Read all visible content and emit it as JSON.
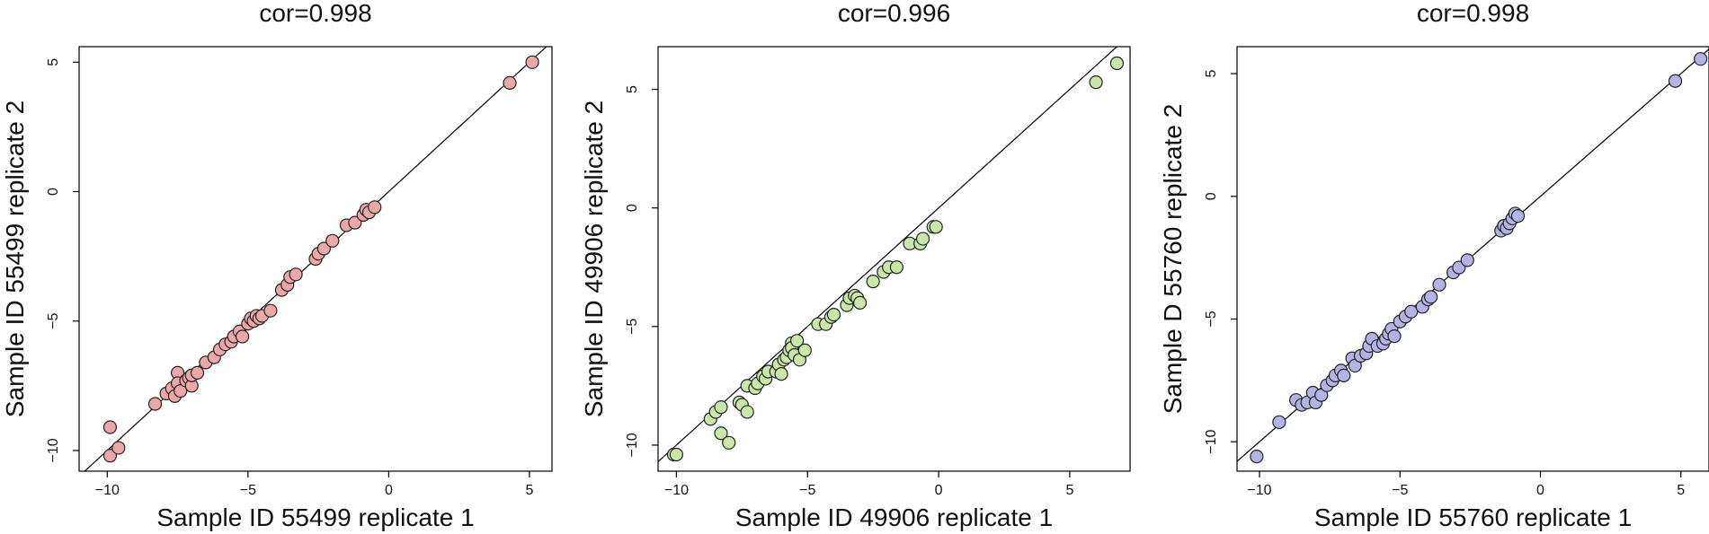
{
  "chart_data": [
    {
      "type": "scatter",
      "title": "cor=0.998",
      "xlabel": "Sample ID 55499 replicate 1",
      "ylabel": "Sample ID 55499 replicate 2",
      "xlim": [
        -11,
        5.8
      ],
      "ylim": [
        -10.8,
        5.6
      ],
      "xticks": [
        -10,
        -5,
        0,
        5
      ],
      "yticks": [
        -10,
        -5,
        0,
        5
      ],
      "xtick_labels": [
        "−10",
        "−5",
        "0",
        "5"
      ],
      "ytick_labels": [
        "−10",
        "−5",
        "0",
        "5"
      ],
      "point_color": "#ECA8A8",
      "reference_line": "y = x",
      "grid": false,
      "points": [
        [
          -9.9,
          -9.1
        ],
        [
          -9.9,
          -10.2
        ],
        [
          -9.6,
          -9.9
        ],
        [
          -8.3,
          -8.2
        ],
        [
          -7.9,
          -7.8
        ],
        [
          -7.7,
          -7.6
        ],
        [
          -7.6,
          -7.9
        ],
        [
          -7.5,
          -7.0
        ],
        [
          -7.5,
          -7.4
        ],
        [
          -7.4,
          -7.7
        ],
        [
          -7.2,
          -7.3
        ],
        [
          -7.1,
          -7.2
        ],
        [
          -7.0,
          -7.5
        ],
        [
          -7.0,
          -7.1
        ],
        [
          -6.8,
          -7.0
        ],
        [
          -6.5,
          -6.6
        ],
        [
          -6.2,
          -6.4
        ],
        [
          -6.0,
          -6.1
        ],
        [
          -5.8,
          -5.9
        ],
        [
          -5.6,
          -5.8
        ],
        [
          -5.5,
          -5.6
        ],
        [
          -5.3,
          -5.4
        ],
        [
          -5.2,
          -5.6
        ],
        [
          -5.0,
          -5.1
        ],
        [
          -4.9,
          -4.9
        ],
        [
          -4.8,
          -5.0
        ],
        [
          -4.7,
          -4.8
        ],
        [
          -4.6,
          -4.9
        ],
        [
          -4.5,
          -4.8
        ],
        [
          -4.2,
          -4.6
        ],
        [
          -3.8,
          -3.8
        ],
        [
          -3.6,
          -3.6
        ],
        [
          -3.5,
          -3.3
        ],
        [
          -3.3,
          -3.2
        ],
        [
          -2.6,
          -2.6
        ],
        [
          -2.5,
          -2.4
        ],
        [
          -2.3,
          -2.2
        ],
        [
          -2.0,
          -1.9
        ],
        [
          -1.5,
          -1.3
        ],
        [
          -1.2,
          -1.2
        ],
        [
          -0.9,
          -0.9
        ],
        [
          -0.8,
          -0.7
        ],
        [
          -0.7,
          -0.8
        ],
        [
          -0.5,
          -0.6
        ],
        [
          4.3,
          4.2
        ],
        [
          5.1,
          5.0
        ]
      ]
    },
    {
      "type": "scatter",
      "title": "cor=0.996",
      "xlabel": "Sample ID 49906 replicate 1",
      "ylabel": "Sample  ID 49906 replicate 2",
      "xlim": [
        -10.7,
        7.3
      ],
      "ylim": [
        -11.1,
        6.8
      ],
      "xticks": [
        -10,
        -5,
        0,
        5
      ],
      "yticks": [
        -10,
        -5,
        0,
        5
      ],
      "xtick_labels": [
        "−10",
        "−5",
        "0",
        "5"
      ],
      "ytick_labels": [
        "−10",
        "−5",
        "0",
        "5"
      ],
      "point_color": "#C9E8A8",
      "reference_line": "y = x",
      "grid": false,
      "points": [
        [
          -10.1,
          -10.4
        ],
        [
          -10.0,
          -10.4
        ],
        [
          -8.7,
          -8.9
        ],
        [
          -8.5,
          -8.6
        ],
        [
          -8.3,
          -8.4
        ],
        [
          -8.3,
          -9.5
        ],
        [
          -8.0,
          -9.9
        ],
        [
          -7.6,
          -8.2
        ],
        [
          -7.5,
          -8.3
        ],
        [
          -7.3,
          -8.6
        ],
        [
          -7.3,
          -7.5
        ],
        [
          -7.0,
          -7.6
        ],
        [
          -6.9,
          -7.4
        ],
        [
          -6.7,
          -7.1
        ],
        [
          -6.6,
          -7.2
        ],
        [
          -6.5,
          -6.9
        ],
        [
          -6.2,
          -6.9
        ],
        [
          -6.1,
          -6.6
        ],
        [
          -6.0,
          -7.0
        ],
        [
          -5.9,
          -6.4
        ],
        [
          -5.8,
          -6.3
        ],
        [
          -5.7,
          -6.0
        ],
        [
          -5.6,
          -5.7
        ],
        [
          -5.6,
          -5.9
        ],
        [
          -5.5,
          -6.2
        ],
        [
          -5.4,
          -5.6
        ],
        [
          -5.3,
          -6.4
        ],
        [
          -5.1,
          -6.0
        ],
        [
          -4.6,
          -4.9
        ],
        [
          -4.3,
          -4.9
        ],
        [
          -4.1,
          -4.6
        ],
        [
          -4.0,
          -4.5
        ],
        [
          -3.5,
          -4.1
        ],
        [
          -3.4,
          -3.8
        ],
        [
          -3.2,
          -3.7
        ],
        [
          -3.1,
          -3.8
        ],
        [
          -3.0,
          -4.0
        ],
        [
          -2.5,
          -3.1
        ],
        [
          -2.1,
          -2.7
        ],
        [
          -1.9,
          -2.5
        ],
        [
          -1.6,
          -2.5
        ],
        [
          -1.1,
          -1.5
        ],
        [
          -0.7,
          -1.5
        ],
        [
          -0.6,
          -1.3
        ],
        [
          -0.2,
          -0.8
        ],
        [
          -0.1,
          -0.8
        ],
        [
          6.0,
          5.3
        ],
        [
          6.8,
          6.1
        ]
      ]
    },
    {
      "type": "scatter",
      "title": "cor=0.998",
      "xlabel": "Sample ID 55760 replicate 1",
      "ylabel": "Sample D 55760 replicate 2",
      "xlim": [
        -10.8,
        6.0
      ],
      "ylim": [
        -11.2,
        6.1
      ],
      "xticks": [
        -10,
        -5,
        0,
        5
      ],
      "yticks": [
        -10,
        -5,
        0,
        5
      ],
      "xtick_labels": [
        "−10",
        "−5",
        "0",
        "5"
      ],
      "ytick_labels": [
        "−10",
        "−5",
        "0",
        "5"
      ],
      "point_color": "#B3B3E6",
      "reference_line": "y = x",
      "grid": false,
      "points": [
        [
          -10.1,
          -10.6
        ],
        [
          -9.3,
          -9.2
        ],
        [
          -8.7,
          -8.3
        ],
        [
          -8.5,
          -8.5
        ],
        [
          -8.3,
          -8.4
        ],
        [
          -8.1,
          -8.0
        ],
        [
          -8.0,
          -8.4
        ],
        [
          -7.8,
          -8.1
        ],
        [
          -7.6,
          -7.7
        ],
        [
          -7.4,
          -7.5
        ],
        [
          -7.3,
          -7.3
        ],
        [
          -7.1,
          -7.1
        ],
        [
          -7.0,
          -7.3
        ],
        [
          -6.7,
          -6.6
        ],
        [
          -6.6,
          -6.9
        ],
        [
          -6.4,
          -6.5
        ],
        [
          -6.2,
          -6.4
        ],
        [
          -6.1,
          -6.1
        ],
        [
          -6.0,
          -5.8
        ],
        [
          -5.8,
          -6.1
        ],
        [
          -5.6,
          -6.0
        ],
        [
          -5.5,
          -5.8
        ],
        [
          -5.4,
          -5.6
        ],
        [
          -5.3,
          -5.4
        ],
        [
          -5.2,
          -5.7
        ],
        [
          -5.0,
          -5.1
        ],
        [
          -4.8,
          -4.9
        ],
        [
          -4.6,
          -4.7
        ],
        [
          -4.2,
          -4.5
        ],
        [
          -4.0,
          -4.2
        ],
        [
          -3.9,
          -4.1
        ],
        [
          -3.6,
          -3.6
        ],
        [
          -3.1,
          -3.1
        ],
        [
          -2.9,
          -2.9
        ],
        [
          -2.6,
          -2.6
        ],
        [
          -1.4,
          -1.4
        ],
        [
          -1.3,
          -1.2
        ],
        [
          -1.2,
          -1.3
        ],
        [
          -1.1,
          -1.1
        ],
        [
          -1.0,
          -0.9
        ],
        [
          -0.9,
          -0.7
        ],
        [
          -0.8,
          -0.8
        ],
        [
          4.8,
          4.7
        ],
        [
          5.7,
          5.6
        ]
      ]
    }
  ]
}
